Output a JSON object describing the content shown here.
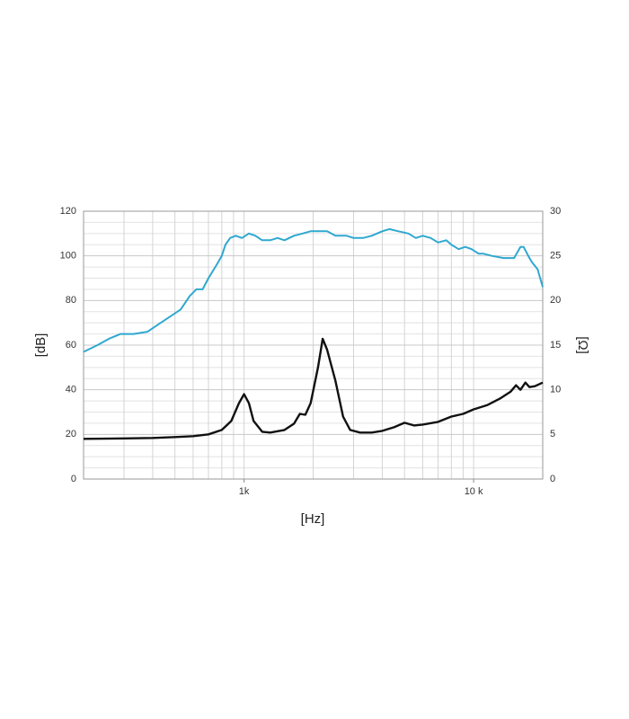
{
  "chart_data": {
    "type": "line",
    "x_label": "[Hz]",
    "y_label": "[dB]",
    "y2_label": "[Ω]",
    "log_x": true,
    "grid": true,
    "xlim": [
      200,
      20000
    ],
    "xticks": [
      {
        "value": 1000,
        "label": "1k"
      },
      {
        "value": 10000,
        "label": "10 k"
      }
    ],
    "xminor_ticks": [
      200,
      300,
      400,
      500,
      600,
      700,
      800,
      900,
      1000,
      2000,
      3000,
      4000,
      5000,
      6000,
      7000,
      8000,
      9000,
      10000,
      20000
    ],
    "ylim": [
      0,
      120
    ],
    "yticks": [
      0,
      20,
      40,
      60,
      80,
      100,
      120
    ],
    "yminor_ticks": [
      5,
      10,
      15,
      25,
      30,
      35,
      45,
      50,
      55,
      65,
      70,
      75,
      85,
      90,
      95,
      105,
      110,
      115
    ],
    "y2lim": [
      0,
      30
    ],
    "y2ticks": [
      0,
      5,
      10,
      15,
      20,
      25,
      30
    ],
    "series": [
      {
        "color": "#2fa8d0",
        "axis": "y",
        "x": [
          200,
          230,
          260,
          290,
          330,
          380,
          420,
          480,
          530,
          580,
          620,
          660,
          700,
          760,
          800,
          830,
          870,
          920,
          980,
          1050,
          1120,
          1200,
          1300,
          1400,
          1500,
          1650,
          1800,
          1950,
          2100,
          2300,
          2500,
          2800,
          3000,
          3300,
          3600,
          4000,
          4300,
          4700,
          5200,
          5600,
          6000,
          6500,
          7000,
          7600,
          8000,
          8600,
          9200,
          9800,
          10500,
          11000,
          12000,
          13500,
          15000,
          16000,
          16500,
          17500,
          18000,
          19000,
          20000
        ],
        "values": [
          57,
          60,
          63,
          65,
          65,
          66,
          69,
          73,
          76,
          82,
          85,
          85,
          90,
          96,
          100,
          105,
          108,
          109,
          108,
          110,
          109,
          107,
          107,
          108,
          107,
          109,
          110,
          111,
          111,
          111,
          109,
          109,
          108,
          108,
          109,
          111,
          112,
          111,
          110,
          108,
          109,
          108,
          106,
          107,
          105,
          103,
          104,
          103,
          101,
          101,
          100,
          99,
          99,
          104,
          104,
          99,
          97,
          94,
          86
        ]
      },
      {
        "color": "#111111",
        "axis": "y2",
        "x": [
          200,
          300,
          400,
          500,
          600,
          700,
          800,
          880,
          950,
          1000,
          1050,
          1100,
          1200,
          1300,
          1500,
          1650,
          1750,
          1850,
          1950,
          2100,
          2200,
          2300,
          2500,
          2700,
          2900,
          3200,
          3600,
          4000,
          4500,
          5000,
          5500,
          6000,
          7000,
          8000,
          9000,
          10000,
          11500,
          13000,
          14500,
          15300,
          16000,
          16800,
          17500,
          18500,
          20000
        ],
        "values": [
          4.5,
          4.55,
          4.6,
          4.7,
          4.8,
          5.0,
          5.5,
          6.5,
          8.5,
          9.5,
          8.5,
          6.5,
          5.3,
          5.2,
          5.5,
          6.2,
          7.3,
          7.2,
          8.5,
          12.5,
          15.7,
          14.5,
          11.0,
          7.0,
          5.5,
          5.2,
          5.2,
          5.4,
          5.8,
          6.3,
          6.0,
          6.1,
          6.4,
          7.0,
          7.3,
          7.8,
          8.3,
          9.0,
          9.8,
          10.5,
          10.0,
          10.8,
          10.3,
          10.4,
          10.8
        ]
      }
    ]
  }
}
